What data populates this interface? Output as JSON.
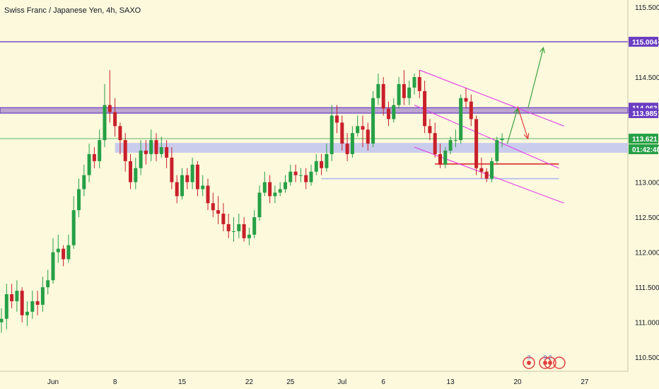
{
  "chart_data": {
    "type": "candlestick",
    "title": "Swiss Franc / Japanese Yen, 4h, SAXO",
    "xlabel": "",
    "ylabel": "",
    "ylim": [
      110.3,
      115.6
    ],
    "xlim": [
      0,
      121
    ],
    "y_ticks": [
      "110.500",
      "111.000",
      "111.500",
      "112.000",
      "112.500",
      "113.000",
      "113.500",
      "114.000",
      "114.500",
      "115.000",
      "115.500"
    ],
    "x_ticks": [
      {
        "pos": 10,
        "label": "Jun"
      },
      {
        "pos": 22,
        "label": "8"
      },
      {
        "pos": 35,
        "label": "15"
      },
      {
        "pos": 48,
        "label": "22"
      },
      {
        "pos": 56,
        "label": "25"
      },
      {
        "pos": 66,
        "label": "Jul"
      },
      {
        "pos": 74,
        "label": "6"
      },
      {
        "pos": 87,
        "label": "13"
      },
      {
        "pos": 100,
        "label": "20"
      },
      {
        "pos": 113,
        "label": "27"
      }
    ],
    "price_badges": [
      {
        "label": "115.004",
        "value": 115.004,
        "color": "#6a3ec2"
      },
      {
        "label": "114.063",
        "value": 114.063,
        "color": "#6a3ec2"
      },
      {
        "label": "113.985",
        "value": 113.985,
        "color": "#6a3ec2"
      },
      {
        "label": "113.621",
        "value": 113.621,
        "color": "#26a046"
      },
      {
        "label": "01:42:48",
        "value": 113.47,
        "color": "#26a046"
      }
    ],
    "event_markers": [
      "3",
      "9",
      "2"
    ],
    "series": [
      {
        "kind": "ohlc",
        "x": [
          0,
          1,
          2,
          3,
          4,
          5,
          6,
          7,
          8,
          9,
          10,
          11,
          12,
          13,
          14,
          15,
          16,
          17,
          18,
          19,
          20,
          21,
          22,
          23,
          24,
          25,
          26,
          27,
          28,
          29,
          30,
          31,
          32,
          33,
          34,
          35,
          36,
          37,
          38,
          39,
          40,
          41,
          42,
          43,
          44,
          45,
          46,
          47,
          48,
          49,
          50,
          51,
          52,
          53,
          54,
          55,
          56,
          57,
          58,
          59,
          60,
          61,
          62,
          63,
          64,
          65,
          66,
          67,
          68,
          69,
          70,
          71,
          72,
          73,
          74,
          75,
          76,
          77,
          78,
          79,
          80,
          81,
          82,
          83,
          84,
          85,
          86,
          87,
          88,
          89,
          90,
          91,
          92,
          93,
          94,
          95,
          96,
          97
        ],
        "open": [
          111.0,
          111.05,
          111.4,
          111.3,
          111.45,
          111.1,
          111.15,
          111.3,
          111.25,
          111.5,
          111.6,
          112.0,
          112.05,
          111.9,
          112.1,
          112.6,
          112.9,
          113.1,
          113.4,
          113.3,
          113.6,
          114.1,
          114.0,
          113.8,
          113.6,
          113.3,
          113.0,
          113.2,
          113.45,
          113.4,
          113.6,
          113.4,
          113.5,
          113.35,
          113.0,
          112.8,
          113.1,
          113.0,
          113.25,
          112.9,
          112.95,
          112.7,
          112.6,
          112.55,
          112.4,
          112.3,
          112.3,
          112.4,
          112.2,
          112.25,
          112.5,
          112.85,
          113.0,
          112.8,
          112.85,
          112.9,
          113.0,
          113.15,
          113.1,
          113.1,
          113.0,
          113.15,
          113.3,
          113.2,
          113.4,
          113.95,
          113.85,
          113.55,
          113.4,
          113.7,
          113.8,
          113.75,
          113.55,
          114.2,
          114.4,
          114.05,
          113.9,
          114.1,
          114.4,
          114.2,
          114.35,
          114.5,
          114.3,
          113.8,
          113.7,
          113.4,
          113.25,
          113.45,
          113.6,
          113.6,
          114.2,
          114.15,
          113.9,
          113.2,
          113.15,
          113.05,
          113.3,
          113.6
        ],
        "close": [
          111.05,
          111.4,
          111.3,
          111.45,
          111.1,
          111.15,
          111.3,
          111.25,
          111.5,
          111.6,
          112.0,
          112.05,
          111.9,
          112.1,
          112.6,
          112.9,
          113.1,
          113.4,
          113.3,
          113.6,
          114.1,
          114.0,
          113.8,
          113.6,
          113.3,
          113.0,
          113.2,
          113.45,
          113.4,
          113.6,
          113.4,
          113.5,
          113.35,
          113.0,
          112.8,
          113.1,
          113.0,
          113.25,
          112.9,
          112.95,
          112.7,
          112.6,
          112.55,
          112.4,
          112.3,
          112.3,
          112.4,
          112.2,
          112.25,
          112.5,
          112.85,
          113.0,
          112.8,
          112.85,
          112.9,
          113.0,
          113.15,
          113.1,
          113.1,
          113.0,
          113.15,
          113.3,
          113.2,
          113.4,
          113.95,
          113.85,
          113.55,
          113.4,
          113.7,
          113.8,
          113.75,
          113.55,
          114.2,
          114.4,
          114.05,
          113.9,
          114.1,
          114.4,
          114.2,
          114.35,
          114.5,
          114.3,
          113.8,
          113.7,
          113.4,
          113.25,
          113.45,
          113.6,
          113.6,
          114.2,
          114.15,
          113.9,
          113.2,
          113.15,
          113.05,
          113.3,
          113.6,
          113.62
        ],
        "high": [
          111.2,
          111.55,
          111.55,
          111.6,
          111.5,
          111.3,
          111.45,
          111.45,
          111.65,
          111.75,
          112.2,
          112.25,
          112.1,
          112.25,
          112.8,
          113.05,
          113.25,
          113.55,
          113.5,
          113.75,
          114.4,
          114.6,
          114.2,
          113.85,
          113.7,
          113.4,
          113.35,
          113.6,
          113.6,
          113.75,
          113.7,
          113.65,
          113.6,
          113.5,
          113.1,
          113.2,
          113.2,
          113.35,
          113.3,
          113.1,
          113.05,
          112.85,
          112.8,
          112.7,
          112.55,
          112.5,
          112.55,
          112.5,
          112.35,
          112.6,
          112.95,
          113.15,
          113.1,
          112.95,
          113.0,
          113.1,
          113.25,
          113.25,
          113.2,
          113.2,
          113.25,
          113.4,
          113.4,
          113.55,
          114.1,
          114.1,
          113.95,
          113.7,
          113.8,
          113.95,
          113.95,
          113.85,
          114.3,
          114.55,
          114.5,
          114.15,
          114.2,
          114.5,
          114.6,
          114.45,
          114.55,
          114.6,
          114.45,
          113.9,
          113.85,
          113.55,
          113.5,
          113.65,
          113.75,
          114.25,
          114.35,
          114.25,
          113.95,
          113.35,
          113.2,
          113.35,
          113.65,
          113.7
        ],
        "low": [
          110.85,
          110.9,
          111.2,
          111.15,
          111.0,
          110.95,
          111.05,
          111.1,
          111.15,
          111.4,
          111.55,
          111.85,
          111.8,
          111.85,
          112.05,
          112.5,
          112.8,
          113.0,
          113.2,
          113.2,
          113.5,
          113.85,
          113.65,
          113.4,
          113.15,
          112.9,
          112.9,
          113.1,
          113.25,
          113.3,
          113.3,
          113.35,
          113.2,
          112.9,
          112.7,
          112.75,
          112.9,
          112.9,
          112.8,
          112.8,
          112.6,
          112.5,
          112.4,
          112.3,
          112.2,
          112.15,
          112.2,
          112.15,
          112.1,
          112.2,
          112.45,
          112.8,
          112.7,
          112.7,
          112.8,
          112.85,
          112.95,
          113.0,
          113.0,
          112.9,
          112.95,
          113.1,
          113.1,
          113.15,
          113.3,
          113.7,
          113.45,
          113.3,
          113.35,
          113.65,
          113.5,
          113.45,
          113.5,
          114.1,
          113.95,
          113.8,
          113.85,
          114.05,
          114.1,
          114.1,
          114.25,
          114.2,
          113.7,
          113.6,
          113.35,
          113.2,
          113.2,
          113.4,
          113.5,
          113.55,
          114.05,
          113.8,
          113.1,
          113.05,
          113.0,
          113.0,
          113.25,
          113.5
        ]
      }
    ],
    "drawings": [
      {
        "name": "resistance-line-115",
        "kind": "hline",
        "y": 115.004,
        "color": "#6a3ec2"
      },
      {
        "name": "resistance-zone-114",
        "kind": "zone",
        "y1": 113.985,
        "y2": 114.063,
        "color": "#6a3ec2"
      },
      {
        "name": "support-zone-1135",
        "kind": "zone",
        "y1": 113.42,
        "y2": 113.56,
        "from": 22,
        "color": "#b8bcf0"
      },
      {
        "name": "support-line-1130",
        "kind": "segment",
        "x1": 62,
        "x2": 108,
        "y1": 113.05,
        "y2": 113.05,
        "color": "#b8bcf0"
      },
      {
        "name": "red-support-line",
        "kind": "segment",
        "x1": 84,
        "x2": 108,
        "y1": 113.26,
        "y2": 113.26,
        "color": "#e04040"
      },
      {
        "name": "current-price-line",
        "kind": "hline",
        "y": 113.621,
        "color": "#26a046"
      },
      {
        "name": "channel-upper",
        "kind": "segment",
        "x1": 81,
        "x2": 109,
        "y1": 114.6,
        "y2": 113.8,
        "color": "#e040e8"
      },
      {
        "name": "channel-middle",
        "kind": "segment",
        "x1": 80,
        "x2": 108,
        "y1": 114.1,
        "y2": 113.2,
        "color": "#e040e8"
      },
      {
        "name": "channel-lower",
        "kind": "segment",
        "x1": 80,
        "x2": 109,
        "y1": 113.5,
        "y2": 112.7,
        "color": "#e040e8"
      },
      {
        "name": "bullish-arrow-1",
        "kind": "arrow",
        "x1": 98,
        "x2": 100,
        "y1": 113.55,
        "y2": 114.05,
        "color": "#3fa23f"
      },
      {
        "name": "bearish-arrow",
        "kind": "arrow",
        "x1": 100,
        "x2": 102,
        "y1": 114.08,
        "y2": 113.62,
        "color": "#e04040"
      },
      {
        "name": "bullish-arrow-2",
        "kind": "arrow",
        "x1": 102,
        "x2": 105,
        "y1": 114.05,
        "y2": 114.92,
        "color": "#3fa23f"
      }
    ],
    "colors": {
      "up": "#26a046",
      "down": "#c8202a",
      "background": "#fdf9dd"
    }
  }
}
